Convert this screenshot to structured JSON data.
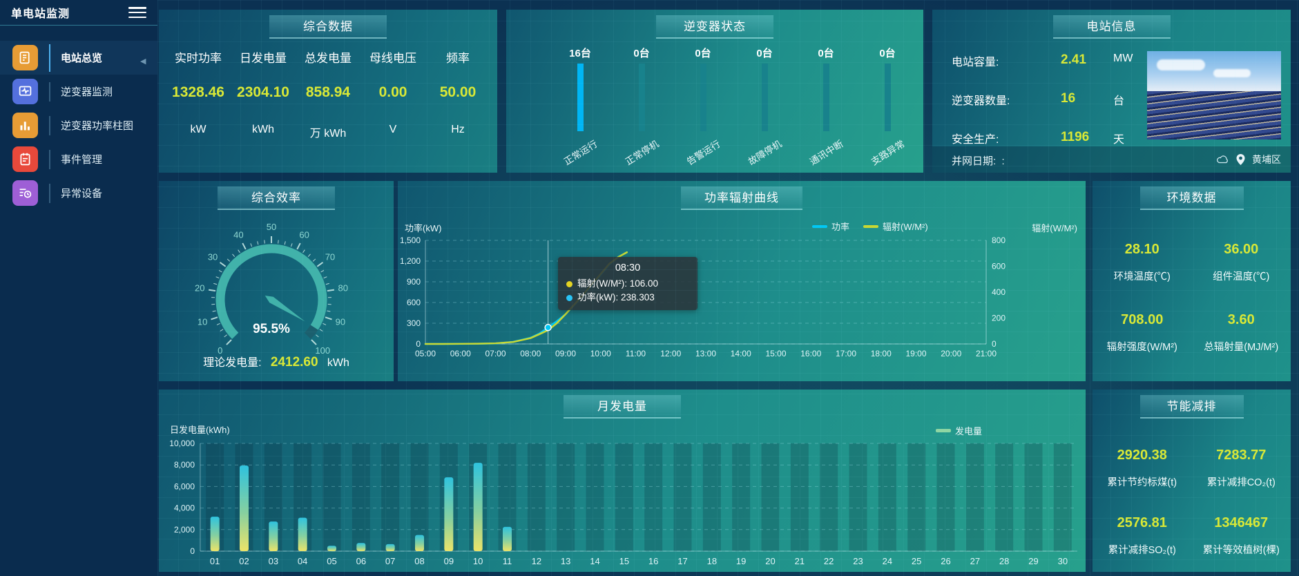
{
  "app": {
    "title": "单电站监测"
  },
  "sidebar": {
    "items": [
      {
        "key": "overview",
        "label": "电站总览",
        "icon": "overview-icon",
        "color": "#e79c35",
        "active": true
      },
      {
        "key": "inverter-monitor",
        "label": "逆变器监测",
        "icon": "inverter-monitor-icon",
        "color": "#5470dd",
        "active": false
      },
      {
        "key": "inverter-power-bars",
        "label": "逆变器功率柱图",
        "icon": "power-bars-icon",
        "color": "#e79c35",
        "active": false
      },
      {
        "key": "event-management",
        "label": "事件管理",
        "icon": "event-icon",
        "color": "#e8493b",
        "active": false
      },
      {
        "key": "abnormal-devices",
        "label": "异常设备",
        "icon": "abnormal-icon",
        "color": "#9e5fd6",
        "active": false
      }
    ]
  },
  "panels": {
    "summary": {
      "title": "综合数据",
      "metrics": [
        {
          "label": "实时功率",
          "value": "1328.46",
          "unit": "kW"
        },
        {
          "label": "日发电量",
          "value": "2304.10",
          "unit": "kWh"
        },
        {
          "label": "总发电量",
          "value": "858.94",
          "unit": "万 kWh"
        },
        {
          "label": "母线电压",
          "value": "0.00",
          "unit": "V"
        },
        {
          "label": "频率",
          "value": "50.00",
          "unit": "Hz"
        }
      ]
    },
    "inverter_status": {
      "title": "逆变器状态",
      "bars": [
        {
          "count": "16台",
          "label": "正常运行",
          "highlight": true
        },
        {
          "count": "0台",
          "label": "正常停机",
          "highlight": false
        },
        {
          "count": "0台",
          "label": "告警运行",
          "highlight": false
        },
        {
          "count": "0台",
          "label": "故障停机",
          "highlight": false
        },
        {
          "count": "0台",
          "label": "通讯中断",
          "highlight": false
        },
        {
          "count": "0台",
          "label": "支路异常",
          "highlight": false
        }
      ],
      "highlight_color": "#00b6f5",
      "normal_color": "#18828c"
    },
    "station_info": {
      "title": "电站信息",
      "rows": [
        {
          "label": "电站容量:",
          "value": "2.41",
          "unit": "MW"
        },
        {
          "label": "逆变器数量:",
          "value": "16",
          "unit": "台"
        },
        {
          "label": "安全生产:",
          "value": "1196",
          "unit": "天"
        }
      ],
      "footer": {
        "label": "并网日期:",
        "value": ":",
        "location": "黄埔区"
      }
    },
    "efficiency": {
      "title": "综合效率",
      "theory_label": "理论发电量:",
      "theory_value": "2412.60",
      "theory_unit": "kWh"
    },
    "power_curve": {
      "title": "功率辐射曲线",
      "left_axis_title": "功率(kW)",
      "right_axis_title": "辐射(W/M²)"
    },
    "environment": {
      "title": "环境数据",
      "metrics": [
        {
          "value": "28.10",
          "label": "环境温度(℃)"
        },
        {
          "value": "36.00",
          "label": "组件温度(℃)"
        },
        {
          "value": "708.00",
          "label": "辐射强度(W/M²)"
        },
        {
          "value": "3.60",
          "label": "总辐射量(MJ/M²)"
        }
      ]
    },
    "monthly": {
      "title": "月发电量",
      "ylabel": "日发电量(kWh)"
    },
    "saving": {
      "title": "节能减排",
      "metrics": [
        {
          "value": "2920.38",
          "label": "累计节约标煤(t)"
        },
        {
          "value": "7283.77",
          "label": "累计减排CO₂(t)"
        },
        {
          "value": "2576.81",
          "label": "累计减排SO₂(t)"
        },
        {
          "value": "1346467",
          "label": "累计等效植树(棵)"
        }
      ]
    }
  },
  "chart_data": [
    {
      "id": "power_radiation_curve",
      "type": "line",
      "title": "功率辐射曲线",
      "x_hours": [
        5,
        5.5,
        6,
        6.5,
        7,
        7.5,
        8,
        8.25,
        8.5,
        8.75,
        9,
        9.5,
        10,
        10.25,
        10.5,
        10.75
      ],
      "series": [
        {
          "name": "功率",
          "color": "#00c8f5",
          "axis": "left",
          "values": [
            0,
            0,
            1,
            3,
            8,
            30,
            90,
            150,
            238.3,
            330,
            430,
            700,
            1000,
            1150,
            1260,
            1328
          ]
        },
        {
          "name": "辐射(W/M²)",
          "color": "#c9d832",
          "axis": "right",
          "values": [
            0,
            0,
            1,
            2,
            5,
            15,
            45,
            75,
            106,
            160,
            230,
            380,
            540,
            620,
            670,
            708
          ]
        }
      ],
      "left_axis": {
        "name": "功率(kW)",
        "min": 0,
        "max": 1500,
        "ticks": [
          "0",
          "300",
          "600",
          "900",
          "1,200",
          "1,500"
        ]
      },
      "right_axis": {
        "name": "辐射(W/M²)",
        "min": 0,
        "max": 800,
        "ticks": [
          "0",
          "200",
          "400",
          "600",
          "800"
        ]
      },
      "x_ticks": [
        "05:00",
        "06:00",
        "07:00",
        "08:00",
        "09:00",
        "10:00",
        "11:00",
        "12:00",
        "13:00",
        "14:00",
        "15:00",
        "16:00",
        "17:00",
        "18:00",
        "19:00",
        "20:00",
        "21:00"
      ],
      "x_range": [
        5,
        21
      ],
      "legend": [
        {
          "label": "功率",
          "color": "#00c8f5"
        },
        {
          "label": "辐射(W/M²)",
          "color": "#c9d832"
        }
      ],
      "tooltip": {
        "time": "08:30",
        "x_hour": 8.5,
        "marker_value": 238.3,
        "items": [
          {
            "color": "#e3d322",
            "text": "辐射(W/M²): 106.00"
          },
          {
            "color": "#29c4f6",
            "text": "功率(kW): 238.303"
          }
        ]
      }
    },
    {
      "id": "monthly_generation",
      "type": "bar",
      "title": "月发电量",
      "ylabel": "日发电量(kWh)",
      "legend": [
        {
          "label": "发电量",
          "color": "#8fd6a3"
        }
      ],
      "categories": [
        "01",
        "02",
        "03",
        "04",
        "05",
        "06",
        "07",
        "08",
        "09",
        "10",
        "11",
        "12",
        "13",
        "14",
        "15",
        "16",
        "17",
        "18",
        "19",
        "20",
        "21",
        "22",
        "23",
        "24",
        "25",
        "26",
        "27",
        "28",
        "29",
        "30"
      ],
      "values": [
        3200,
        7950,
        2750,
        3100,
        500,
        750,
        650,
        1500,
        6850,
        8200,
        2250,
        0,
        0,
        0,
        0,
        0,
        0,
        0,
        0,
        0,
        0,
        0,
        0,
        0,
        0,
        0,
        0,
        0,
        0,
        0
      ],
      "ylim": [
        0,
        10000
      ],
      "y_ticks": [
        "0",
        "2,000",
        "4,000",
        "6,000",
        "8,000",
        "10,000"
      ],
      "bar_gradient": {
        "top": "#2fc3de",
        "mid": "#86d0a0",
        "bottom": "#ece368"
      }
    },
    {
      "id": "efficiency_gauge",
      "type": "gauge",
      "title": "综合效率",
      "value": 95.5,
      "display": "95.5%",
      "min": 0,
      "max": 100,
      "tick_labels": [
        "0",
        "10",
        "20",
        "30",
        "40",
        "50",
        "60",
        "70",
        "80",
        "90",
        "100"
      ],
      "ring_color": "#41b2aa",
      "rest_color": "#1b5f6e"
    }
  ]
}
